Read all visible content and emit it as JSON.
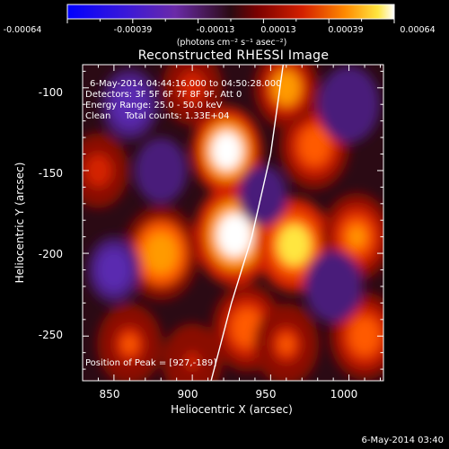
{
  "chart_data": {
    "type": "heatmap",
    "title": "Reconstructed RHESSI Image",
    "xlabel": "Heliocentric X (arcsec)",
    "ylabel": "Heliocentric Y (arcsec)",
    "xlim": [
      830,
      1022
    ],
    "ylim": [
      -277,
      -86
    ],
    "x_ticks": [
      850,
      900,
      950,
      1000
    ],
    "y_ticks": [
      -100,
      -150,
      -200,
      -250
    ],
    "colorbar": {
      "label": "(photons cm⁻² s⁻¹ asec⁻²)",
      "range": [
        -0.00064,
        0.00064
      ],
      "ticks": [
        "-0.00064",
        "-0.00039",
        "-0.00013",
        "0.00013",
        "0.00039",
        "0.00064"
      ]
    },
    "annotations": [
      "6-May-2014 04:44:16.000 to 04:50:28.000",
      "Detectors: 3F 5F 6F 7F 8F 9F, Att 0",
      "Energy Range: 25.0 - 50.0 keV",
      "Clean     Total counts: 1.33E+04"
    ],
    "peak_label": "Position of Peak = [927,-189]",
    "peak": [
      927,
      -189
    ],
    "limb_points": [
      [
        958,
        -86
      ],
      [
        950,
        -140
      ],
      [
        938,
        -190
      ],
      [
        925,
        -230
      ],
      [
        912,
        -277
      ]
    ],
    "blobs": [
      {
        "x": 922,
        "y": -138,
        "a": 1.0,
        "s": 14
      },
      {
        "x": 927,
        "y": -189,
        "a": 1.0,
        "s": 16
      },
      {
        "x": 965,
        "y": -195,
        "a": 0.85,
        "s": 15
      },
      {
        "x": 880,
        "y": -200,
        "a": 0.75,
        "s": 15
      },
      {
        "x": 935,
        "y": -245,
        "a": 0.6,
        "s": 14
      },
      {
        "x": 978,
        "y": -135,
        "a": 0.6,
        "s": 14
      },
      {
        "x": 960,
        "y": -100,
        "a": 0.7,
        "s": 13
      },
      {
        "x": 1005,
        "y": -190,
        "a": 0.65,
        "s": 14
      },
      {
        "x": 1010,
        "y": -250,
        "a": 0.55,
        "s": 14
      },
      {
        "x": 860,
        "y": -255,
        "a": 0.5,
        "s": 13
      },
      {
        "x": 840,
        "y": -150,
        "a": 0.4,
        "s": 12
      },
      {
        "x": 900,
        "y": -100,
        "a": 0.45,
        "s": 12
      },
      {
        "x": 960,
        "y": -255,
        "a": 0.5,
        "s": 13
      },
      {
        "x": 900,
        "y": -265,
        "a": 0.35,
        "s": 12
      },
      {
        "x": 860,
        "y": -110,
        "a": -0.5,
        "s": 13
      },
      {
        "x": 850,
        "y": -210,
        "a": -0.45,
        "s": 12
      },
      {
        "x": 1000,
        "y": -110,
        "a": -0.4,
        "s": 14
      },
      {
        "x": 990,
        "y": -220,
        "a": -0.4,
        "s": 13
      },
      {
        "x": 880,
        "y": -150,
        "a": -0.35,
        "s": 12
      },
      {
        "x": 945,
        "y": -165,
        "a": -0.3,
        "s": 11
      }
    ]
  },
  "footer": {
    "timestamp": "6-May-2014 03:40"
  }
}
